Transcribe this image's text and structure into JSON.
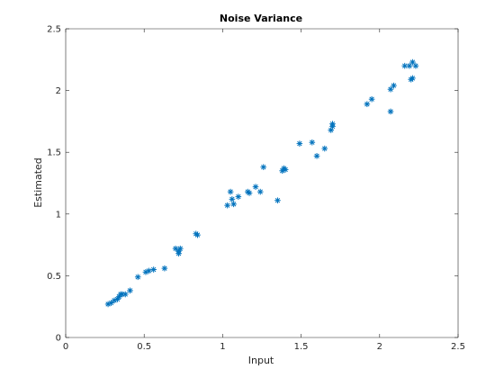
{
  "chart_data": {
    "type": "scatter",
    "title": "Noise Variance",
    "xlabel": "Input",
    "ylabel": "Estimated",
    "xlim": [
      0,
      2.5
    ],
    "ylim": [
      0,
      2.5
    ],
    "xticks": [
      "0",
      "0.5",
      "1",
      "1.5",
      "2",
      "2.5"
    ],
    "yticks": [
      "0",
      "0.5",
      "1",
      "1.5",
      "2",
      "2.5"
    ],
    "grid": false,
    "marker": "asterisk",
    "marker_color": "#0072bd",
    "series": [
      {
        "points": [
          [
            0.27,
            0.27
          ],
          [
            0.29,
            0.28
          ],
          [
            0.31,
            0.3
          ],
          [
            0.33,
            0.31
          ],
          [
            0.34,
            0.33
          ],
          [
            0.35,
            0.35
          ],
          [
            0.36,
            0.35
          ],
          [
            0.38,
            0.35
          ],
          [
            0.41,
            0.38
          ],
          [
            0.46,
            0.49
          ],
          [
            0.51,
            0.53
          ],
          [
            0.53,
            0.54
          ],
          [
            0.56,
            0.55
          ],
          [
            0.63,
            0.56
          ],
          [
            0.7,
            0.72
          ],
          [
            0.72,
            0.7
          ],
          [
            0.72,
            0.68
          ],
          [
            0.73,
            0.72
          ],
          [
            0.83,
            0.84
          ],
          [
            0.84,
            0.83
          ],
          [
            1.03,
            1.07
          ],
          [
            1.05,
            1.18
          ],
          [
            1.06,
            1.12
          ],
          [
            1.07,
            1.08
          ],
          [
            1.1,
            1.14
          ],
          [
            1.16,
            1.18
          ],
          [
            1.17,
            1.17
          ],
          [
            1.21,
            1.22
          ],
          [
            1.24,
            1.18
          ],
          [
            1.26,
            1.38
          ],
          [
            1.35,
            1.11
          ],
          [
            1.38,
            1.35
          ],
          [
            1.39,
            1.37
          ],
          [
            1.4,
            1.36
          ],
          [
            1.49,
            1.57
          ],
          [
            1.57,
            1.58
          ],
          [
            1.6,
            1.47
          ],
          [
            1.65,
            1.53
          ],
          [
            1.69,
            1.68
          ],
          [
            1.7,
            1.71
          ],
          [
            1.7,
            1.73
          ],
          [
            1.92,
            1.89
          ],
          [
            1.95,
            1.93
          ],
          [
            2.07,
            2.01
          ],
          [
            2.09,
            2.04
          ],
          [
            2.07,
            1.83
          ],
          [
            2.16,
            2.2
          ],
          [
            2.19,
            2.2
          ],
          [
            2.2,
            2.09
          ],
          [
            2.21,
            2.1
          ],
          [
            2.21,
            2.23
          ],
          [
            2.23,
            2.2
          ]
        ]
      }
    ]
  }
}
